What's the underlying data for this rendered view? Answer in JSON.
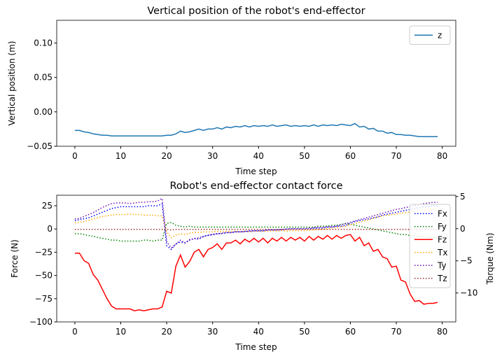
{
  "chart_data": [
    {
      "type": "line",
      "title": "Vertical position of the robot's end-effector",
      "xlabel": "Time step",
      "ylabel": "Vertical position (m)",
      "x": [
        0,
        1,
        2,
        3,
        4,
        5,
        6,
        7,
        8,
        9,
        10,
        11,
        12,
        13,
        14,
        15,
        16,
        17,
        18,
        19,
        20,
        21,
        22,
        23,
        24,
        25,
        26,
        27,
        28,
        29,
        30,
        31,
        32,
        33,
        34,
        35,
        36,
        37,
        38,
        39,
        40,
        41,
        42,
        43,
        44,
        45,
        46,
        47,
        48,
        49,
        50,
        51,
        52,
        53,
        54,
        55,
        56,
        57,
        58,
        59,
        60,
        61,
        62,
        63,
        64,
        65,
        66,
        67,
        68,
        69,
        70,
        71,
        72,
        73,
        74,
        75,
        76,
        77,
        78,
        79
      ],
      "xlim": [
        -3.95,
        82.95
      ],
      "xticks": [
        0,
        10,
        20,
        30,
        40,
        50,
        60,
        70,
        80
      ],
      "ylim": [
        -0.05,
        0.133
      ],
      "yticks": [
        {
          "value": -0.05,
          "label": "−0.05"
        },
        {
          "value": 0,
          "label": "0.00"
        },
        0.05,
        {
          "value": 0.1,
          "label": "0.10"
        }
      ],
      "legend": "upper right",
      "series": [
        {
          "name": "z",
          "color": "#1f77b4",
          "linestyle": "solid",
          "values": [
            -0.027,
            -0.027,
            -0.029,
            -0.03,
            -0.032,
            -0.033,
            -0.034,
            -0.034,
            -0.035,
            -0.035,
            -0.035,
            -0.035,
            -0.035,
            -0.035,
            -0.035,
            -0.035,
            -0.035,
            -0.035,
            -0.035,
            -0.035,
            -0.034,
            -0.034,
            -0.032,
            -0.028,
            -0.03,
            -0.029,
            -0.027,
            -0.025,
            -0.027,
            -0.025,
            -0.025,
            -0.023,
            -0.025,
            -0.022,
            -0.023,
            -0.021,
            -0.022,
            -0.02,
            -0.022,
            -0.02,
            -0.021,
            -0.02,
            -0.021,
            -0.019,
            -0.021,
            -0.02,
            -0.019,
            -0.021,
            -0.02,
            -0.021,
            -0.02,
            -0.021,
            -0.019,
            -0.021,
            -0.019,
            -0.02,
            -0.019,
            -0.02,
            -0.018,
            -0.019,
            -0.02,
            -0.017,
            -0.022,
            -0.021,
            -0.025,
            -0.024,
            -0.028,
            -0.028,
            -0.031,
            -0.03,
            -0.033,
            -0.033,
            -0.034,
            -0.034,
            -0.035,
            -0.036,
            -0.036,
            -0.036,
            -0.036,
            -0.036
          ]
        }
      ]
    },
    {
      "type": "line",
      "title": "Robot's end-effector contact force",
      "xlabel": "Time step",
      "ylabel": "Force (N)",
      "y2label": "Torque (Nm)",
      "x": [
        0,
        1,
        2,
        3,
        4,
        5,
        6,
        7,
        8,
        9,
        10,
        11,
        12,
        13,
        14,
        15,
        16,
        17,
        18,
        19,
        20,
        21,
        22,
        23,
        24,
        25,
        26,
        27,
        28,
        29,
        30,
        31,
        32,
        33,
        34,
        35,
        36,
        37,
        38,
        39,
        40,
        41,
        42,
        43,
        44,
        45,
        46,
        47,
        48,
        49,
        50,
        51,
        52,
        53,
        54,
        55,
        56,
        57,
        58,
        59,
        60,
        61,
        62,
        63,
        64,
        65,
        66,
        67,
        68,
        69,
        70,
        71,
        72,
        73,
        74,
        75,
        76,
        77,
        78,
        79
      ],
      "xlim": [
        -3.95,
        82.95
      ],
      "xticks": [
        0,
        10,
        20,
        30,
        40,
        50,
        60,
        70,
        80
      ],
      "ylim": [
        -100,
        36.3
      ],
      "yticks": [
        {
          "value": -100,
          "label": "−100"
        },
        {
          "value": -75,
          "label": "−75"
        },
        {
          "value": -50,
          "label": "−50"
        },
        {
          "value": -25,
          "label": "−25"
        },
        0,
        25
      ],
      "y2lim": [
        -14.5,
        5.2
      ],
      "y2ticks": [
        {
          "value": -10,
          "label": "−10"
        },
        {
          "value": -5,
          "label": "−5"
        },
        0,
        5
      ],
      "legend": "right",
      "series": [
        {
          "name": "Fx",
          "color": "#0000ff",
          "linestyle": "dotted",
          "values": [
            9,
            10,
            11,
            12,
            14,
            16,
            18,
            20,
            22,
            23,
            24,
            24,
            24,
            24,
            24,
            24,
            25,
            25,
            25,
            27,
            -18,
            -22,
            -16,
            -14,
            -15,
            -12,
            -10,
            -11,
            -8,
            -7,
            -6,
            -5,
            -5,
            -4,
            -4,
            -3,
            -3,
            -3,
            -2,
            -2,
            -2,
            -2,
            -1,
            -1,
            -1,
            -1,
            0,
            0,
            0,
            0,
            0,
            0,
            1,
            1,
            1,
            2,
            2,
            3,
            3,
            4,
            6,
            8,
            9,
            10,
            11,
            12,
            13,
            15,
            16,
            17,
            18,
            19,
            20,
            21,
            22,
            23,
            24,
            24,
            25,
            25
          ]
        },
        {
          "name": "Fy",
          "color": "#008000",
          "linestyle": "dotted",
          "values": [
            -5,
            -5,
            -6,
            -7,
            -8,
            -9,
            -10,
            -11,
            -12,
            -12,
            -13,
            -13,
            -13,
            -13,
            -13,
            -12,
            -12,
            -13,
            -12,
            -12,
            6,
            7,
            4,
            3,
            2,
            3,
            2,
            2,
            2,
            2,
            2,
            2,
            2,
            2,
            2,
            2,
            2,
            2,
            2,
            2,
            2,
            2,
            2,
            2,
            2,
            2,
            2,
            2,
            2,
            2,
            2,
            2,
            2,
            3,
            3,
            3,
            4,
            4,
            5,
            6,
            5,
            4,
            3,
            2,
            1,
            0,
            -1,
            -2,
            -3,
            -4,
            -5,
            -6,
            -6,
            -7,
            -7,
            -8,
            -8,
            -9,
            -9,
            -10
          ]
        },
        {
          "name": "Fz",
          "color": "#ff0000",
          "linestyle": "solid",
          "values": [
            -26,
            -26,
            -34,
            -37,
            -49,
            -55,
            -65,
            -75,
            -83,
            -86,
            -86,
            -86,
            -86,
            -88,
            -87,
            -88,
            -87,
            -86,
            -86,
            -84,
            -67,
            -69,
            -40,
            -28,
            -41,
            -35,
            -25,
            -22,
            -30,
            -22,
            -20,
            -16,
            -22,
            -15,
            -15,
            -12,
            -16,
            -11,
            -14,
            -10,
            -14,
            -10,
            -15,
            -10,
            -13,
            -9,
            -13,
            -9,
            -12,
            -9,
            -13,
            -8,
            -12,
            -8,
            -11,
            -7,
            -11,
            -7,
            -10,
            -7,
            -6,
            -13,
            -9,
            -18,
            -15,
            -24,
            -22,
            -30,
            -32,
            -41,
            -40,
            -55,
            -57,
            -70,
            -78,
            -77,
            -81,
            -80,
            -80,
            -79
          ]
        },
        {
          "name": "Tx",
          "color": "#ffa500",
          "linestyle": "dotted",
          "axis": "y2",
          "values": [
            0.9,
            1.0,
            1.1,
            1.3,
            1.5,
            1.7,
            1.9,
            2.0,
            2.1,
            2.2,
            2.2,
            2.2,
            2.3,
            2.2,
            2.2,
            2.1,
            2.1,
            2.1,
            2.0,
            2.0,
            -0.5,
            -1.4,
            -1.0,
            -0.8,
            -0.9,
            -0.7,
            -0.6,
            -0.6,
            -0.5,
            -0.5,
            -0.5,
            -0.4,
            -0.5,
            -0.4,
            -0.5,
            -0.4,
            -0.5,
            -0.4,
            -0.5,
            -0.4,
            -0.4,
            -0.4,
            -0.4,
            -0.3,
            -0.4,
            -0.3,
            -0.4,
            -0.3,
            -0.3,
            -0.3,
            -0.3,
            -0.2,
            -0.2,
            -0.1,
            -0.1,
            0,
            0.1,
            0.2,
            0.3,
            0.4,
            0.6,
            0.8,
            1.0,
            1.2,
            1.4,
            1.6,
            1.8,
            2.0,
            2.1,
            2.2,
            2.3,
            2.4,
            2.5,
            2.6,
            2.7,
            2.8,
            2.9,
            2.9,
            3.0,
            3.0
          ]
        },
        {
          "name": "Ty",
          "color": "#6a0dad",
          "linestyle": "dotted",
          "axis": "y2",
          "values": [
            1.5,
            1.6,
            1.9,
            2.2,
            2.5,
            2.9,
            3.3,
            3.6,
            3.9,
            4.0,
            4.0,
            4.0,
            3.9,
            4.0,
            4.1,
            4.1,
            4.2,
            4.2,
            4.3,
            4.7,
            -2.0,
            -3.0,
            -2.4,
            -1.8,
            -2.2,
            -1.7,
            -1.6,
            -1.4,
            -1.2,
            -1.0,
            -0.9,
            -0.8,
            -0.7,
            -0.6,
            -0.6,
            -0.5,
            -0.5,
            -0.4,
            -0.4,
            -0.3,
            -0.3,
            -0.3,
            -0.2,
            -0.2,
            -0.2,
            -0.1,
            -0.1,
            0,
            0,
            0,
            0,
            0.1,
            0.1,
            0.2,
            0.2,
            0.3,
            0.3,
            0.4,
            0.6,
            0.8,
            1.0,
            1.2,
            1.4,
            1.6,
            1.8,
            2.0,
            2.2,
            2.4,
            2.6,
            2.8,
            3.0,
            3.1,
            3.3,
            3.4,
            3.6,
            3.7,
            3.9,
            4.0,
            4.1,
            4.1
          ]
        },
        {
          "name": "Tz",
          "color": "#a52a2a",
          "linestyle": "dotted",
          "axis": "y2",
          "values": [
            -0.1,
            -0.1,
            -0.1,
            -0.1,
            -0.1,
            -0.1,
            -0.1,
            -0.1,
            -0.1,
            -0.1,
            -0.1,
            -0.1,
            -0.1,
            -0.1,
            -0.1,
            -0.1,
            -0.1,
            -0.1,
            -0.1,
            -0.1,
            -0.1,
            -0.2,
            -0.1,
            -0.1,
            -0.1,
            -0.1,
            -0.1,
            -0.1,
            -0.1,
            -0.1,
            -0.1,
            -0.1,
            -0.1,
            -0.1,
            -0.1,
            -0.1,
            -0.1,
            -0.1,
            -0.1,
            -0.1,
            -0.1,
            -0.1,
            -0.1,
            -0.1,
            -0.1,
            -0.1,
            -0.1,
            -0.1,
            -0.1,
            -0.1,
            -0.1,
            -0.1,
            -0.1,
            -0.1,
            -0.1,
            -0.1,
            -0.1,
            -0.1,
            -0.1,
            -0.1,
            -0.1,
            -0.1,
            -0.1,
            -0.1,
            -0.1,
            -0.1,
            -0.1,
            -0.1,
            -0.1,
            -0.1,
            -0.1,
            -0.1,
            -0.1,
            -0.1,
            -0.1,
            -0.1,
            -0.1,
            -0.1,
            -0.1,
            -0.1
          ]
        }
      ]
    }
  ]
}
